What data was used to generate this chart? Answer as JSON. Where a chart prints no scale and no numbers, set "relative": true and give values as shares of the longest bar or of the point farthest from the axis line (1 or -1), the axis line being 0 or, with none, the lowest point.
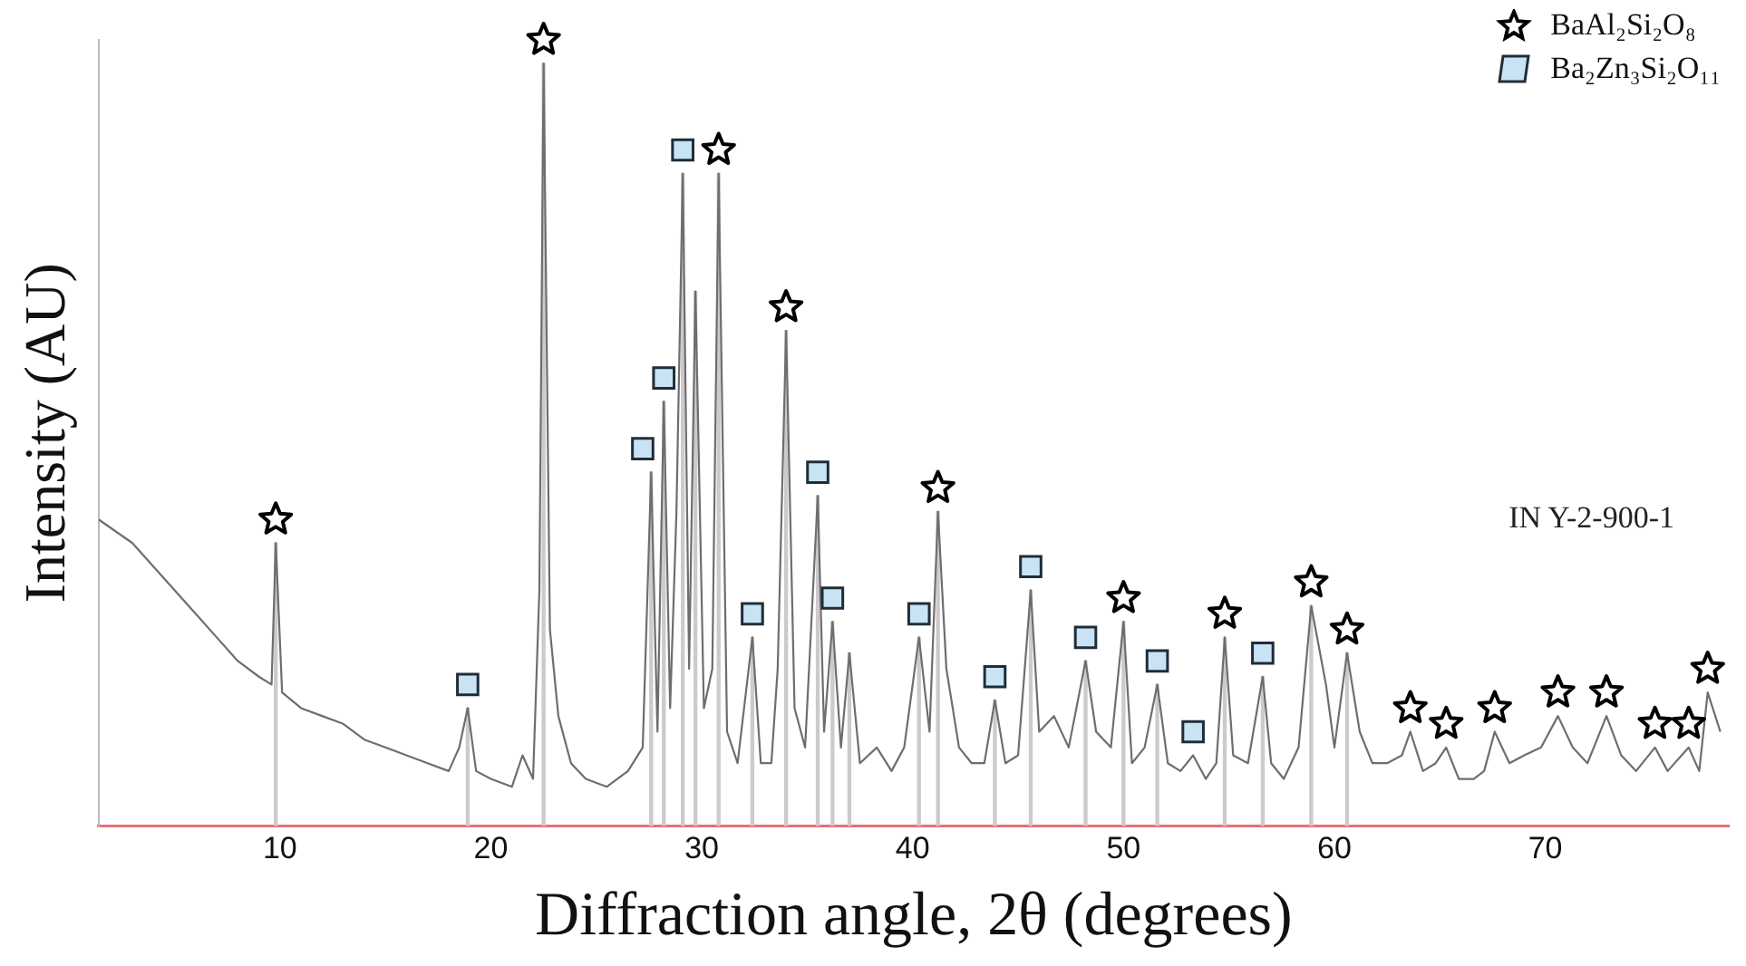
{
  "chart_data": {
    "type": "line",
    "relative": true,
    "xlabel": "Diffraction angle, 2θ (degrees)",
    "ylabel": "Intensity (AU)",
    "xlim": [
      1.4,
      78.7
    ],
    "xticks": [
      10,
      20,
      30,
      40,
      50,
      60,
      70
    ],
    "tick_labels": "x",
    "grid": false,
    "legend": "top right",
    "annotations": [
      "IN Y-2-900-1"
    ],
    "series": [
      {
        "type": "bar",
        "color": "#cfc8cc",
        "x": [
          9.8,
          18.9,
          22.5,
          27.6,
          28.2,
          29.1,
          29.7,
          30.8,
          32.4,
          34.0,
          35.5,
          36.2,
          37.0,
          40.3,
          41.2,
          43.9,
          45.6,
          48.2,
          50.0,
          51.6,
          54.8,
          56.6,
          58.9,
          60.6
        ],
        "values": [
          0.36,
          0.15,
          0.97,
          0.45,
          0.54,
          0.83,
          0.68,
          0.83,
          0.24,
          0.63,
          0.42,
          0.26,
          0.22,
          0.24,
          0.4,
          0.16,
          0.3,
          0.21,
          0.26,
          0.18,
          0.24,
          0.19,
          0.28,
          0.22
        ]
      },
      {
        "color": "#6e6e6e",
        "marker": "none",
        "x": [
          1.4,
          3,
          4,
          5,
          6,
          7,
          8,
          9,
          9.6,
          9.8,
          10.1,
          11,
          12,
          13,
          14,
          15,
          16,
          17,
          18,
          18.5,
          18.9,
          19.3,
          20,
          21,
          21.5,
          22,
          22.3,
          22.5,
          22.8,
          23.2,
          23.8,
          24.5,
          25.5,
          26.5,
          27.2,
          27.6,
          27.9,
          28.2,
          28.5,
          28.8,
          29.1,
          29.4,
          29.7,
          30.1,
          30.5,
          30.8,
          31.2,
          31.7,
          32.4,
          32.8,
          33.3,
          33.6,
          34.0,
          34.4,
          34.9,
          35.5,
          35.8,
          36.2,
          36.6,
          37.0,
          37.5,
          38.3,
          39.0,
          39.6,
          40.3,
          40.8,
          41.2,
          41.6,
          42.2,
          42.8,
          43.4,
          43.9,
          44.4,
          45.0,
          45.6,
          46.0,
          46.7,
          47.4,
          48.2,
          48.7,
          49.4,
          50.0,
          50.4,
          51.0,
          51.6,
          52.1,
          52.7,
          53.3,
          53.9,
          54.4,
          54.8,
          55.2,
          55.9,
          56.6,
          57.0,
          57.6,
          58.3,
          58.9,
          59.6,
          60.0,
          60.6,
          61.2,
          61.8,
          62.5,
          63.2,
          63.6,
          64.2,
          64.8,
          65.3,
          65.9,
          66.6,
          67.1,
          67.6,
          68.3,
          69.0,
          69.8,
          70.6,
          71.3,
          72.0,
          72.9,
          73.6,
          74.3,
          75.2,
          75.8,
          76.8,
          77.3,
          77.7,
          78.3
        ],
        "values": [
          0.39,
          0.36,
          0.33,
          0.3,
          0.27,
          0.24,
          0.21,
          0.19,
          0.18,
          0.36,
          0.17,
          0.15,
          0.14,
          0.13,
          0.11,
          0.1,
          0.09,
          0.08,
          0.07,
          0.1,
          0.15,
          0.07,
          0.06,
          0.05,
          0.09,
          0.06,
          0.3,
          0.97,
          0.25,
          0.14,
          0.08,
          0.06,
          0.05,
          0.07,
          0.1,
          0.45,
          0.12,
          0.54,
          0.15,
          0.4,
          0.83,
          0.2,
          0.68,
          0.15,
          0.2,
          0.83,
          0.12,
          0.08,
          0.24,
          0.08,
          0.08,
          0.2,
          0.63,
          0.15,
          0.1,
          0.42,
          0.12,
          0.26,
          0.1,
          0.22,
          0.08,
          0.1,
          0.07,
          0.1,
          0.24,
          0.12,
          0.4,
          0.2,
          0.1,
          0.08,
          0.08,
          0.16,
          0.08,
          0.09,
          0.3,
          0.12,
          0.14,
          0.1,
          0.21,
          0.12,
          0.1,
          0.26,
          0.08,
          0.1,
          0.18,
          0.08,
          0.07,
          0.09,
          0.06,
          0.08,
          0.24,
          0.09,
          0.08,
          0.19,
          0.08,
          0.06,
          0.1,
          0.28,
          0.18,
          0.1,
          0.22,
          0.12,
          0.08,
          0.08,
          0.09,
          0.12,
          0.07,
          0.08,
          0.1,
          0.06,
          0.06,
          0.07,
          0.12,
          0.08,
          0.09,
          0.1,
          0.14,
          0.1,
          0.08,
          0.14,
          0.09,
          0.07,
          0.1,
          0.07,
          0.1,
          0.07,
          0.17,
          0.12
        ]
      },
      {
        "type": "scatter",
        "name": "BaAl₂Si₂O₈",
        "color": "#000000",
        "marker": "star",
        "x": [
          9.8,
          22.5,
          30.8,
          34.0,
          41.2,
          50.0,
          54.8,
          58.9,
          60.6,
          63.6,
          65.3,
          67.6,
          70.6,
          72.9,
          75.2,
          76.8,
          77.7
        ],
        "values": [
          0.39,
          1.0,
          0.86,
          0.66,
          0.43,
          0.29,
          0.27,
          0.31,
          0.25,
          0.15,
          0.13,
          0.15,
          0.17,
          0.17,
          0.13,
          0.13,
          0.2
        ]
      },
      {
        "type": "scatter",
        "name": "Ba₂Zn₃Si₂O₁₁",
        "color": "#c8e4f4",
        "marker": "square",
        "x": [
          18.9,
          29.1,
          28.2,
          27.2,
          32.4,
          35.5,
          36.2,
          40.3,
          43.9,
          45.6,
          48.2,
          51.6,
          53.3,
          56.6
        ],
        "values": [
          0.18,
          0.86,
          0.57,
          0.48,
          0.27,
          0.45,
          0.29,
          0.27,
          0.19,
          0.33,
          0.24,
          0.21,
          0.12,
          0.22
        ]
      }
    ]
  }
}
